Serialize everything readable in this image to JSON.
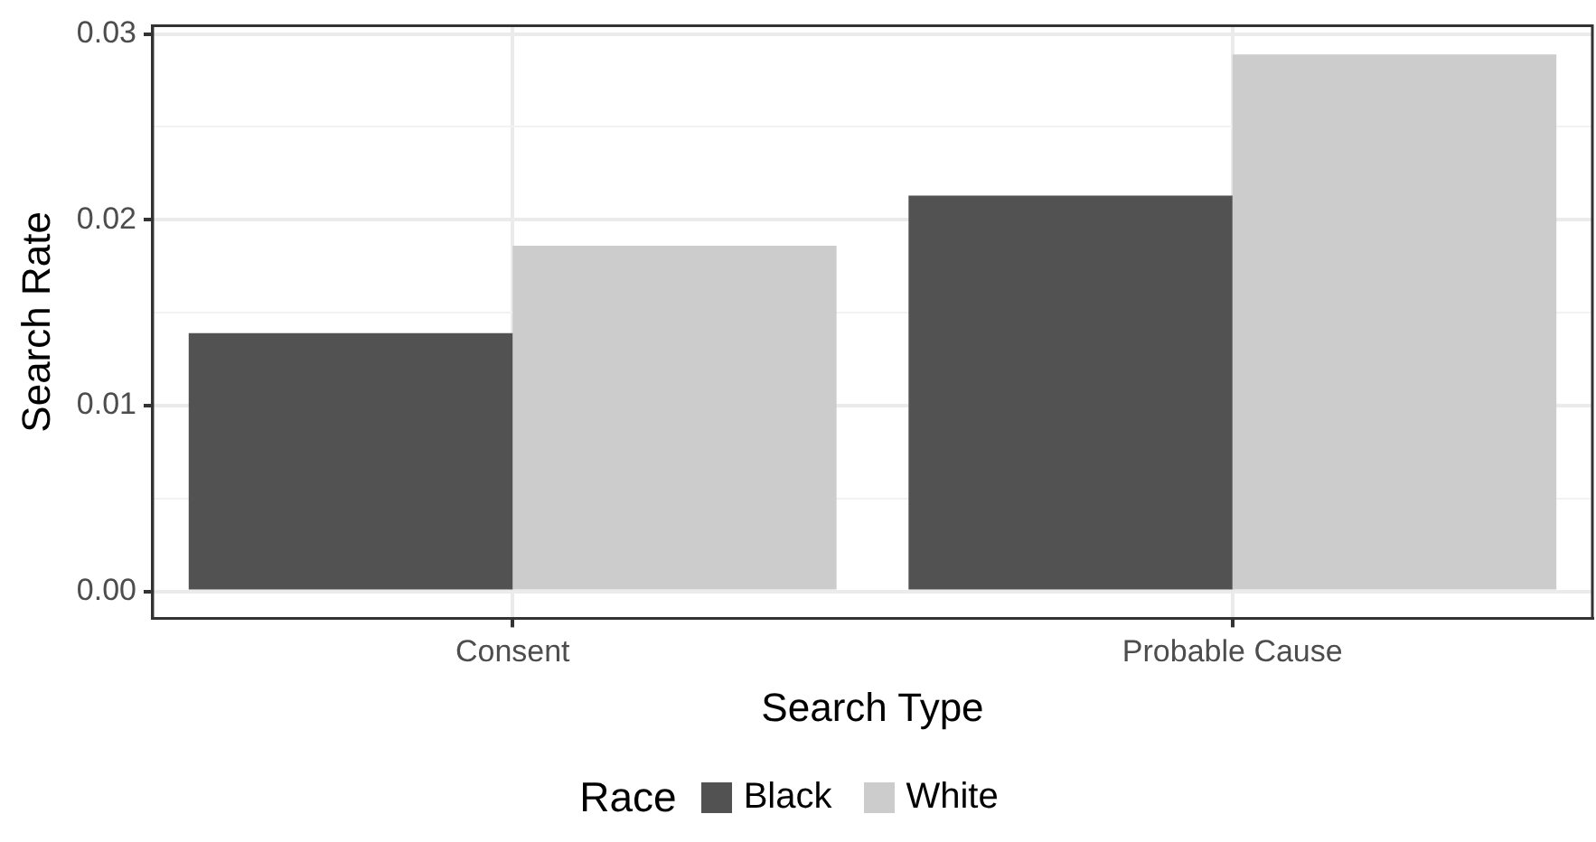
{
  "chart_data": {
    "type": "bar",
    "xlabel": "Search Type",
    "ylabel": "Search Rate",
    "legend_title": "Race",
    "categories": [
      "Consent",
      "Probable Cause"
    ],
    "series": [
      {
        "name": "Black",
        "color": "#525252",
        "values": [
          0.0139,
          0.0213
        ]
      },
      {
        "name": "White",
        "color": "#cccccc",
        "values": [
          0.0186,
          0.0289
        ]
      }
    ],
    "ylim": [
      -0.00145,
      0.03045
    ],
    "yticks": [
      {
        "value": 0,
        "label": "0.00"
      },
      {
        "value": 0.005,
        "label": null
      },
      {
        "value": 0.01,
        "label": "0.01"
      },
      {
        "value": 0.015,
        "label": null
      },
      {
        "value": 0.02,
        "label": "0.02"
      },
      {
        "value": 0.025,
        "label": null
      },
      {
        "value": 0.03,
        "label": "0.03"
      }
    ],
    "grid": true,
    "legend": "bottom"
  }
}
